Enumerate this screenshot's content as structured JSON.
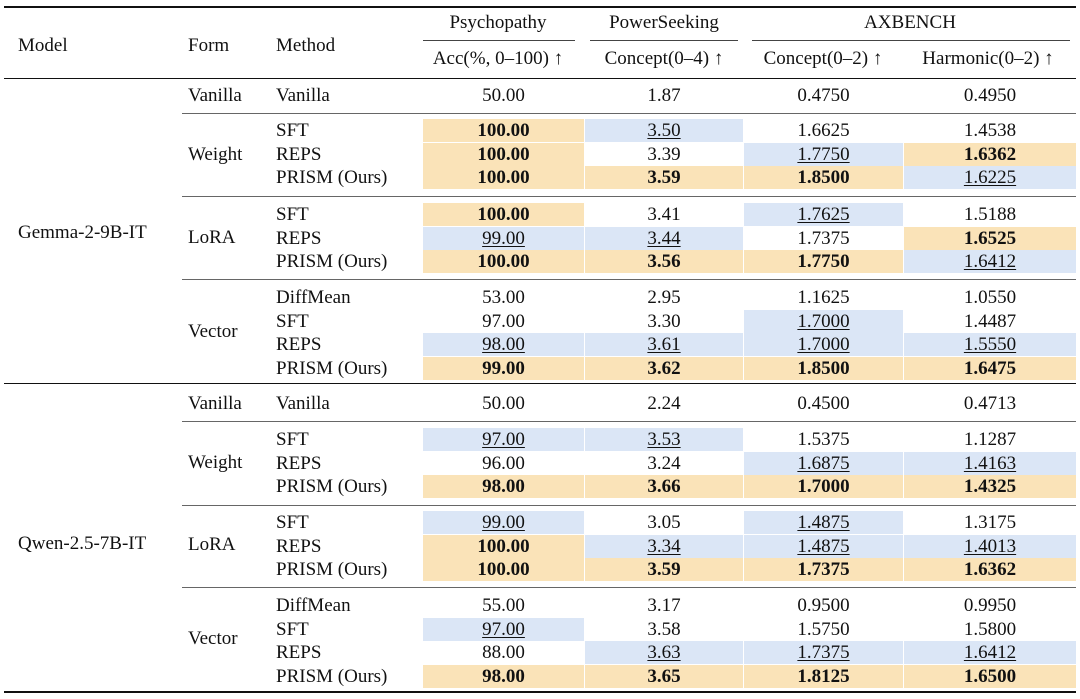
{
  "header": {
    "model": "Model",
    "form": "Form",
    "method": "Method",
    "groups": {
      "psychopathy": "Psychopathy",
      "powerseeking": "PowerSeeking",
      "axbench": "AXBENCH"
    },
    "metrics": [
      "Acc(%, 0–100) ↑",
      "Concept(0–4) ↑",
      "Concept(0–2) ↑",
      "Harmonic(0–2) ↑"
    ]
  },
  "models": [
    {
      "name": "Gemma-2-9B-IT",
      "forms": [
        {
          "form": "Vanilla",
          "rows": [
            {
              "method": "Vanilla",
              "cells": [
                {
                  "v": "50.00",
                  "s": ""
                },
                {
                  "v": "1.87",
                  "s": ""
                },
                {
                  "v": "0.4750",
                  "s": ""
                },
                {
                  "v": "0.4950",
                  "s": ""
                }
              ]
            }
          ]
        },
        {
          "form": "Weight",
          "rows": [
            {
              "method": "SFT",
              "cells": [
                {
                  "v": "100.00",
                  "s": "best"
                },
                {
                  "v": "3.50",
                  "s": "second"
                },
                {
                  "v": "1.6625",
                  "s": ""
                },
                {
                  "v": "1.4538",
                  "s": ""
                }
              ]
            },
            {
              "method": "REPS",
              "cells": [
                {
                  "v": "100.00",
                  "s": "best"
                },
                {
                  "v": "3.39",
                  "s": ""
                },
                {
                  "v": "1.7750",
                  "s": "second"
                },
                {
                  "v": "1.6362",
                  "s": "best"
                }
              ]
            },
            {
              "method": "PRISM (Ours)",
              "cells": [
                {
                  "v": "100.00",
                  "s": "best"
                },
                {
                  "v": "3.59",
                  "s": "best"
                },
                {
                  "v": "1.8500",
                  "s": "best"
                },
                {
                  "v": "1.6225",
                  "s": "second"
                }
              ]
            }
          ]
        },
        {
          "form": "LoRA",
          "rows": [
            {
              "method": "SFT",
              "cells": [
                {
                  "v": "100.00",
                  "s": "best"
                },
                {
                  "v": "3.41",
                  "s": ""
                },
                {
                  "v": "1.7625",
                  "s": "second"
                },
                {
                  "v": "1.5188",
                  "s": ""
                }
              ]
            },
            {
              "method": "REPS",
              "cells": [
                {
                  "v": "99.00",
                  "s": "second"
                },
                {
                  "v": "3.44",
                  "s": "second"
                },
                {
                  "v": "1.7375",
                  "s": ""
                },
                {
                  "v": "1.6525",
                  "s": "best"
                }
              ]
            },
            {
              "method": "PRISM (Ours)",
              "cells": [
                {
                  "v": "100.00",
                  "s": "best"
                },
                {
                  "v": "3.56",
                  "s": "best"
                },
                {
                  "v": "1.7750",
                  "s": "best"
                },
                {
                  "v": "1.6412",
                  "s": "second"
                }
              ]
            }
          ]
        },
        {
          "form": "Vector",
          "rows": [
            {
              "method": "DiffMean",
              "cells": [
                {
                  "v": "53.00",
                  "s": ""
                },
                {
                  "v": "2.95",
                  "s": ""
                },
                {
                  "v": "1.1625",
                  "s": ""
                },
                {
                  "v": "1.0550",
                  "s": ""
                }
              ]
            },
            {
              "method": "SFT",
              "cells": [
                {
                  "v": "97.00",
                  "s": ""
                },
                {
                  "v": "3.30",
                  "s": ""
                },
                {
                  "v": "1.7000",
                  "s": "second"
                },
                {
                  "v": "1.4487",
                  "s": ""
                }
              ]
            },
            {
              "method": "REPS",
              "cells": [
                {
                  "v": "98.00",
                  "s": "second"
                },
                {
                  "v": "3.61",
                  "s": "second"
                },
                {
                  "v": "1.7000",
                  "s": "second"
                },
                {
                  "v": "1.5550",
                  "s": "second"
                }
              ]
            },
            {
              "method": "PRISM (Ours)",
              "cells": [
                {
                  "v": "99.00",
                  "s": "best"
                },
                {
                  "v": "3.62",
                  "s": "best"
                },
                {
                  "v": "1.8500",
                  "s": "best"
                },
                {
                  "v": "1.6475",
                  "s": "best"
                }
              ]
            }
          ]
        }
      ]
    },
    {
      "name": "Qwen-2.5-7B-IT",
      "forms": [
        {
          "form": "Vanilla",
          "rows": [
            {
              "method": "Vanilla",
              "cells": [
                {
                  "v": "50.00",
                  "s": ""
                },
                {
                  "v": "2.24",
                  "s": ""
                },
                {
                  "v": "0.4500",
                  "s": ""
                },
                {
                  "v": "0.4713",
                  "s": ""
                }
              ]
            }
          ]
        },
        {
          "form": "Weight",
          "rows": [
            {
              "method": "SFT",
              "cells": [
                {
                  "v": "97.00",
                  "s": "second"
                },
                {
                  "v": "3.53",
                  "s": "second"
                },
                {
                  "v": "1.5375",
                  "s": ""
                },
                {
                  "v": "1.1287",
                  "s": ""
                }
              ]
            },
            {
              "method": "REPS",
              "cells": [
                {
                  "v": "96.00",
                  "s": ""
                },
                {
                  "v": "3.24",
                  "s": ""
                },
                {
                  "v": "1.6875",
                  "s": "second"
                },
                {
                  "v": "1.4163",
                  "s": "second"
                }
              ]
            },
            {
              "method": "PRISM (Ours)",
              "cells": [
                {
                  "v": "98.00",
                  "s": "best"
                },
                {
                  "v": "3.66",
                  "s": "best"
                },
                {
                  "v": "1.7000",
                  "s": "best"
                },
                {
                  "v": "1.4325",
                  "s": "best"
                }
              ]
            }
          ]
        },
        {
          "form": "LoRA",
          "rows": [
            {
              "method": "SFT",
              "cells": [
                {
                  "v": "99.00",
                  "s": "second"
                },
                {
                  "v": "3.05",
                  "s": ""
                },
                {
                  "v": "1.4875",
                  "s": "second"
                },
                {
                  "v": "1.3175",
                  "s": ""
                }
              ]
            },
            {
              "method": "REPS",
              "cells": [
                {
                  "v": "100.00",
                  "s": "best"
                },
                {
                  "v": "3.34",
                  "s": "second"
                },
                {
                  "v": "1.4875",
                  "s": "second"
                },
                {
                  "v": "1.4013",
                  "s": "second"
                }
              ]
            },
            {
              "method": "PRISM (Ours)",
              "cells": [
                {
                  "v": "100.00",
                  "s": "best"
                },
                {
                  "v": "3.59",
                  "s": "best"
                },
                {
                  "v": "1.7375",
                  "s": "best"
                },
                {
                  "v": "1.6362",
                  "s": "best"
                }
              ]
            }
          ]
        },
        {
          "form": "Vector",
          "rows": [
            {
              "method": "DiffMean",
              "cells": [
                {
                  "v": "55.00",
                  "s": ""
                },
                {
                  "v": "3.17",
                  "s": ""
                },
                {
                  "v": "0.9500",
                  "s": ""
                },
                {
                  "v": "0.9950",
                  "s": ""
                }
              ]
            },
            {
              "method": "SFT",
              "cells": [
                {
                  "v": "97.00",
                  "s": "second"
                },
                {
                  "v": "3.58",
                  "s": ""
                },
                {
                  "v": "1.5750",
                  "s": ""
                },
                {
                  "v": "1.5800",
                  "s": ""
                }
              ]
            },
            {
              "method": "REPS",
              "cells": [
                {
                  "v": "88.00",
                  "s": ""
                },
                {
                  "v": "3.63",
                  "s": "second"
                },
                {
                  "v": "1.7375",
                  "s": "second"
                },
                {
                  "v": "1.6412",
                  "s": "second"
                }
              ]
            },
            {
              "method": "PRISM (Ours)",
              "cells": [
                {
                  "v": "98.00",
                  "s": "best"
                },
                {
                  "v": "3.65",
                  "s": "best"
                },
                {
                  "v": "1.8125",
                  "s": "best"
                },
                {
                  "v": "1.6500",
                  "s": "best"
                }
              ]
            }
          ]
        }
      ]
    }
  ],
  "colors": {
    "best": "#fae3b8",
    "second": "#dbe6f6"
  }
}
